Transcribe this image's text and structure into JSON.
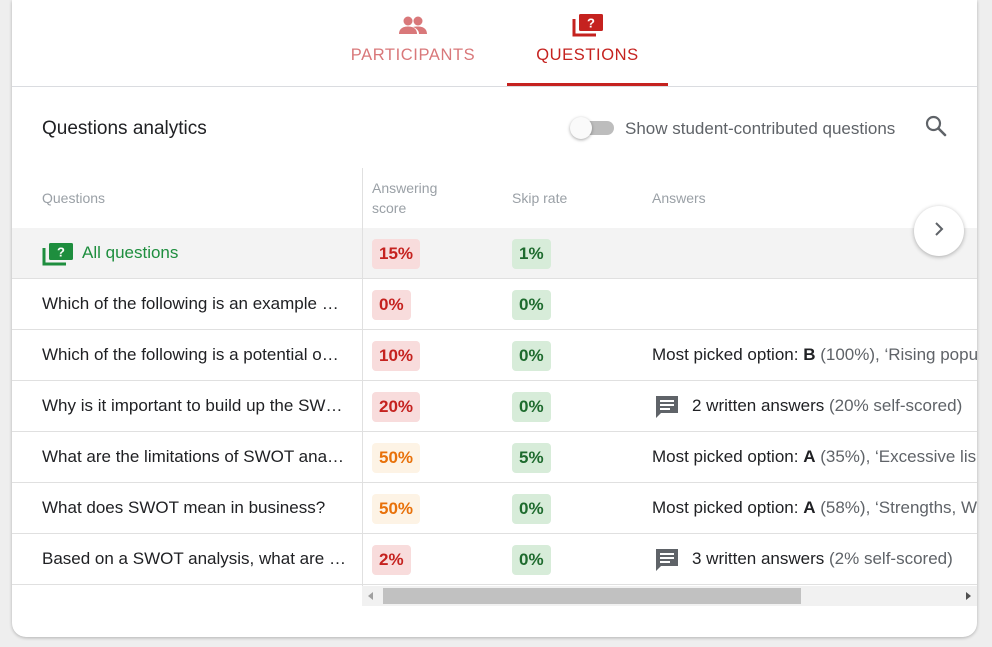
{
  "tabs": [
    {
      "label": "PARTICIPANTS",
      "icon": "people-icon",
      "color": "#d9787a",
      "active": false
    },
    {
      "label": "QUESTIONS",
      "icon": "question-stack-icon",
      "color": "#c5221f",
      "active": true
    }
  ],
  "header": {
    "title": "Questions analytics",
    "toggle_label": "Show student-contributed questions",
    "toggle_on": false
  },
  "table": {
    "columns": {
      "questions": "Questions",
      "score": "Answering score",
      "skip": "Skip rate",
      "answers": "Answers"
    },
    "all_row": {
      "label": "All questions",
      "score": "15%",
      "skip": "1%"
    },
    "rows": [
      {
        "question": "Which of the following is an example of a weakness in SWOT analysis?",
        "score": "0%",
        "score_color": "red",
        "skip": "0%"
      },
      {
        "question": "Which of the following is a potential opportunity in SWOT analysis?",
        "score": "10%",
        "score_color": "red",
        "skip": "0%",
        "answer_type": "picked",
        "answer_prefix": "Most picked option:",
        "answer_option": "B",
        "answer_detail": "(100%), ‘Rising popu"
      },
      {
        "question": "Why is it important to build up the SWOT analysis carefully?",
        "score": "20%",
        "score_color": "red",
        "skip": "0%",
        "answer_type": "written",
        "answer_prefix": "2 written answers",
        "answer_detail": "(20% self-scored)"
      },
      {
        "question": "What are the limitations of SWOT analysis?",
        "score": "50%",
        "score_color": "orange",
        "skip": "5%",
        "answer_type": "picked",
        "answer_prefix": "Most picked option:",
        "answer_option": "A",
        "answer_detail": "(35%), ‘Excessive lis"
      },
      {
        "question": "What does SWOT mean in business?",
        "score": "50%",
        "score_color": "orange",
        "skip": "0%",
        "answer_type": "picked",
        "answer_prefix": "Most picked option:",
        "answer_option": "A",
        "answer_detail": "(58%), ‘Strengths, W"
      },
      {
        "question": "Based on a SWOT analysis, what are some strategies a company could adopt?",
        "score": "2%",
        "score_color": "red",
        "skip": "0%",
        "answer_type": "written",
        "answer_prefix": "3 written answers",
        "answer_detail": "(2% self-scored)"
      }
    ]
  },
  "scroll": {
    "thumb_fraction": 0.72
  }
}
